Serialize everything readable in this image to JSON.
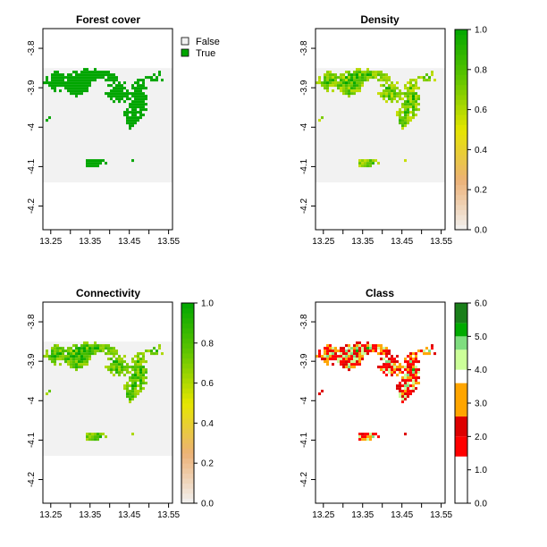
{
  "chart_data": [
    {
      "type": "heatmap",
      "title": "Forest cover",
      "x_ticks": [
        "13.25",
        "13.35",
        "13.45",
        "13.55"
      ],
      "x_tick_values": [
        13.25,
        13.3,
        13.35,
        13.4,
        13.45,
        13.5,
        13.55
      ],
      "y_ticks": [
        "-3.8",
        "-3.9",
        "-4",
        "-4.1",
        "-4.2"
      ],
      "y_tick_values": [
        -3.8,
        -3.9,
        -4.0,
        -4.1,
        -4.2
      ],
      "xlim": [
        13.23,
        13.56
      ],
      "ylim": [
        -4.26,
        -3.75
      ],
      "raster_extent": {
        "x": [
          13.23,
          13.56
        ],
        "y": [
          -4.14,
          -3.85
        ]
      },
      "legend": {
        "kind": "categorical",
        "placement": "top-right",
        "entries": [
          {
            "label": "False",
            "color": "#f2f2f2"
          },
          {
            "label": "True",
            "color": "#00a600"
          }
        ]
      }
    },
    {
      "type": "heatmap",
      "title": "Density",
      "x_ticks": [
        "13.25",
        "13.35",
        "13.45",
        "13.55"
      ],
      "x_tick_values": [
        13.25,
        13.3,
        13.35,
        13.4,
        13.45,
        13.5,
        13.55
      ],
      "y_ticks": [
        "-3.8",
        "-3.9",
        "-4",
        "-4.1",
        "-4.2"
      ],
      "y_tick_values": [
        -3.8,
        -3.9,
        -4.0,
        -4.1,
        -4.2
      ],
      "xlim": [
        13.23,
        13.56
      ],
      "ylim": [
        -4.26,
        -3.75
      ],
      "raster_extent": {
        "x": [
          13.23,
          13.56
        ],
        "y": [
          -4.14,
          -3.85
        ]
      },
      "colorbar": {
        "min": 0,
        "max": 1,
        "ticks": [
          "0.0",
          "0.2",
          "0.4",
          "0.6",
          "0.8",
          "1.0"
        ],
        "tick_values": [
          0,
          0.2,
          0.4,
          0.6,
          0.8,
          1.0
        ],
        "palette": [
          "#f2f2f2",
          "#ecb176",
          "#e6e600",
          "#63c600",
          "#00a600"
        ]
      }
    },
    {
      "type": "heatmap",
      "title": "Connectivity",
      "x_ticks": [
        "13.25",
        "13.35",
        "13.45",
        "13.55"
      ],
      "x_tick_values": [
        13.25,
        13.3,
        13.35,
        13.4,
        13.45,
        13.5,
        13.55
      ],
      "y_ticks": [
        "-3.8",
        "-3.9",
        "-4",
        "-4.1",
        "-4.2"
      ],
      "y_tick_values": [
        -3.8,
        -3.9,
        -4.0,
        -4.1,
        -4.2
      ],
      "xlim": [
        13.23,
        13.56
      ],
      "ylim": [
        -4.26,
        -3.75
      ],
      "raster_extent": {
        "x": [
          13.23,
          13.56
        ],
        "y": [
          -4.14,
          -3.85
        ]
      },
      "colorbar": {
        "min": 0,
        "max": 1,
        "ticks": [
          "0.0",
          "0.2",
          "0.4",
          "0.6",
          "0.8",
          "1.0"
        ],
        "tick_values": [
          0,
          0.2,
          0.4,
          0.6,
          0.8,
          1.0
        ],
        "palette": [
          "#f2f2f2",
          "#ecb176",
          "#e6e600",
          "#63c600",
          "#00a600"
        ]
      }
    },
    {
      "type": "heatmap",
      "title": "Class",
      "x_ticks": [
        "13.25",
        "13.35",
        "13.45",
        "13.55"
      ],
      "x_tick_values": [
        13.25,
        13.3,
        13.35,
        13.4,
        13.45,
        13.5,
        13.55
      ],
      "y_ticks": [
        "-3.8",
        "-3.9",
        "-4",
        "-4.1",
        "-4.2"
      ],
      "y_tick_values": [
        -3.8,
        -3.9,
        -4.0,
        -4.1,
        -4.2
      ],
      "xlim": [
        13.23,
        13.56
      ],
      "ylim": [
        -4.26,
        -3.75
      ],
      "raster_extent": {
        "x": [
          13.23,
          13.56
        ],
        "y": [
          -4.14,
          -3.85
        ]
      },
      "colorbar": {
        "min": 0,
        "max": 6,
        "ticks": [
          "0.0",
          "1.0",
          "2.0",
          "3.0",
          "4.0",
          "5.0",
          "6.0"
        ],
        "tick_values": [
          0,
          1,
          2,
          3,
          4,
          5,
          6
        ],
        "classes": [
          {
            "from": 0.0,
            "to": 1.0,
            "color": "#ffffff"
          },
          {
            "from": 1.0,
            "to": 1.4,
            "color": "#ffffff"
          },
          {
            "from": 1.4,
            "to": 2.0,
            "color": "#ff0000"
          },
          {
            "from": 2.0,
            "to": 2.6,
            "color": "#dd0000"
          },
          {
            "from": 2.6,
            "to": 3.6,
            "color": "#ffa500"
          },
          {
            "from": 3.6,
            "to": 4.0,
            "color": "#ffffff"
          },
          {
            "from": 4.0,
            "to": 4.6,
            "color": "#ccff99"
          },
          {
            "from": 4.6,
            "to": 5.0,
            "color": "#7fdd7f"
          },
          {
            "from": 5.0,
            "to": 5.4,
            "color": "#00aa00"
          },
          {
            "from": 5.4,
            "to": 6.0,
            "color": "#1a7f1a"
          }
        ]
      }
    }
  ]
}
